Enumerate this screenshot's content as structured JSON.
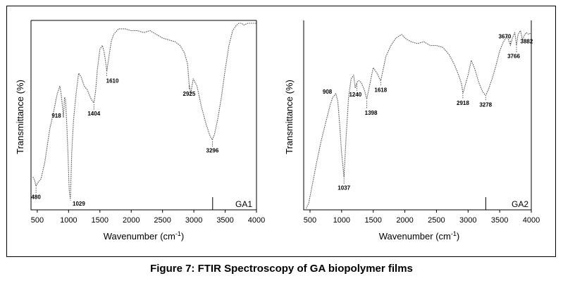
{
  "figure_caption": "Figure 7: FTIR Spectroscopy of GA biopolymer films",
  "chart_data": [
    {
      "type": "line",
      "panel_label": "GA1",
      "xlabel": "Wavenumber (cm⁻¹)",
      "ylabel": "Transmittance (%)",
      "xlim": [
        400,
        4000
      ],
      "ylim": [
        0,
        100
      ],
      "xticks": [
        500,
        1000,
        1500,
        2000,
        2500,
        3000,
        3500,
        4000
      ],
      "yticks_shown": false,
      "grid": false,
      "line_style": "dotted",
      "color": "#555555",
      "series": [
        {
          "x": [
            430,
            460,
            480,
            510,
            560,
            620,
            700,
            760,
            820,
            860,
            880,
            900,
            918,
            935,
            950,
            970,
            990,
            1010,
            1029,
            1050,
            1080,
            1120,
            1160,
            1200,
            1250,
            1300,
            1360,
            1404,
            1430,
            1460,
            1500,
            1540,
            1570,
            1600,
            1610,
            1640,
            1680,
            1720,
            1800,
            1900,
            2000,
            2100,
            2200,
            2300,
            2400,
            2500,
            2600,
            2700,
            2780,
            2850,
            2900,
            2925,
            2950,
            2990,
            3050,
            3120,
            3200,
            3260,
            3296,
            3330,
            3380,
            3440,
            3500,
            3560,
            3620,
            3680,
            3720,
            3760,
            3800,
            3860,
            3920,
            4000
          ],
          "y": [
            17,
            15,
            12,
            14,
            16,
            25,
            43,
            52,
            62,
            66,
            62,
            56,
            49,
            60,
            59,
            46,
            30,
            10,
            5,
            30,
            48,
            62,
            73,
            71,
            66,
            64,
            59,
            57,
            63,
            75,
            86,
            88,
            84,
            77,
            74,
            81,
            90,
            94,
            97,
            97,
            96,
            96,
            95,
            96,
            94,
            92,
            91,
            90,
            88,
            84,
            78,
            67,
            62,
            70,
            66,
            55,
            45,
            39,
            37,
            40,
            48,
            60,
            75,
            88,
            96,
            99,
            100,
            100,
            99,
            100,
            100,
            100
          ]
        }
      ],
      "annotations": [
        {
          "label": "480",
          "x": 480
        },
        {
          "label": "918",
          "x": 918
        },
        {
          "label": "1029",
          "x": 1029
        },
        {
          "label": "1404",
          "x": 1404
        },
        {
          "label": "1610",
          "x": 1610
        },
        {
          "label": "2925",
          "x": 2925
        },
        {
          "label": "3296",
          "x": 3296
        }
      ],
      "marker_line_x": 3300
    },
    {
      "type": "line",
      "panel_label": "GA2",
      "xlabel": "Wavenumber (cm⁻¹)",
      "ylabel": "Transmittance (%)",
      "xlim": [
        400,
        4000
      ],
      "ylim": [
        0,
        100
      ],
      "xticks": [
        500,
        1000,
        1500,
        2000,
        2500,
        3000,
        3500,
        4000
      ],
      "yticks_shown": false,
      "grid": false,
      "line_style": "dotted",
      "color": "#555555",
      "series": [
        {
          "x": [
            440,
            480,
            520,
            600,
            680,
            760,
            820,
            860,
            908,
            940,
            970,
            1000,
            1037,
            1070,
            1110,
            1150,
            1190,
            1215,
            1240,
            1270,
            1310,
            1360,
            1398,
            1440,
            1500,
            1560,
            1600,
            1618,
            1650,
            1700,
            1780,
            1860,
            1950,
            2000,
            2050,
            2100,
            2200,
            2300,
            2400,
            2500,
            2600,
            2700,
            2780,
            2850,
            2900,
            2918,
            2950,
            3000,
            3050,
            3110,
            3170,
            3230,
            3278,
            3320,
            3380,
            3440,
            3500,
            3560,
            3620,
            3670,
            3700,
            3740,
            3766,
            3790,
            3830,
            3860,
            3882,
            3920,
            3960,
            4000
          ],
          "y": [
            0,
            3,
            10,
            24,
            37,
            48,
            56,
            60,
            62,
            58,
            45,
            30,
            17,
            38,
            60,
            70,
            72,
            65,
            68,
            69,
            68,
            64,
            59,
            66,
            76,
            73,
            70,
            69,
            74,
            82,
            88,
            92,
            94,
            92,
            91,
            90,
            89,
            90,
            88,
            88,
            87,
            83,
            78,
            72,
            67,
            62,
            66,
            72,
            80,
            75,
            68,
            63,
            61,
            64,
            70,
            77,
            85,
            90,
            93,
            88,
            92,
            95,
            88,
            94,
            96,
            91,
            93,
            95,
            94,
            95
          ]
        }
      ],
      "annotations": [
        {
          "label": "908",
          "x": 908
        },
        {
          "label": "1037",
          "x": 1037
        },
        {
          "label": "1240",
          "x": 1240
        },
        {
          "label": "1398",
          "x": 1398
        },
        {
          "label": "1618",
          "x": 1618
        },
        {
          "label": "2918",
          "x": 2918
        },
        {
          "label": "3278",
          "x": 3278
        },
        {
          "label": "3670",
          "x": 3670
        },
        {
          "label": "3766",
          "x": 3766
        },
        {
          "label": "3882",
          "x": 3882
        }
      ],
      "marker_line_x": 3280
    }
  ]
}
